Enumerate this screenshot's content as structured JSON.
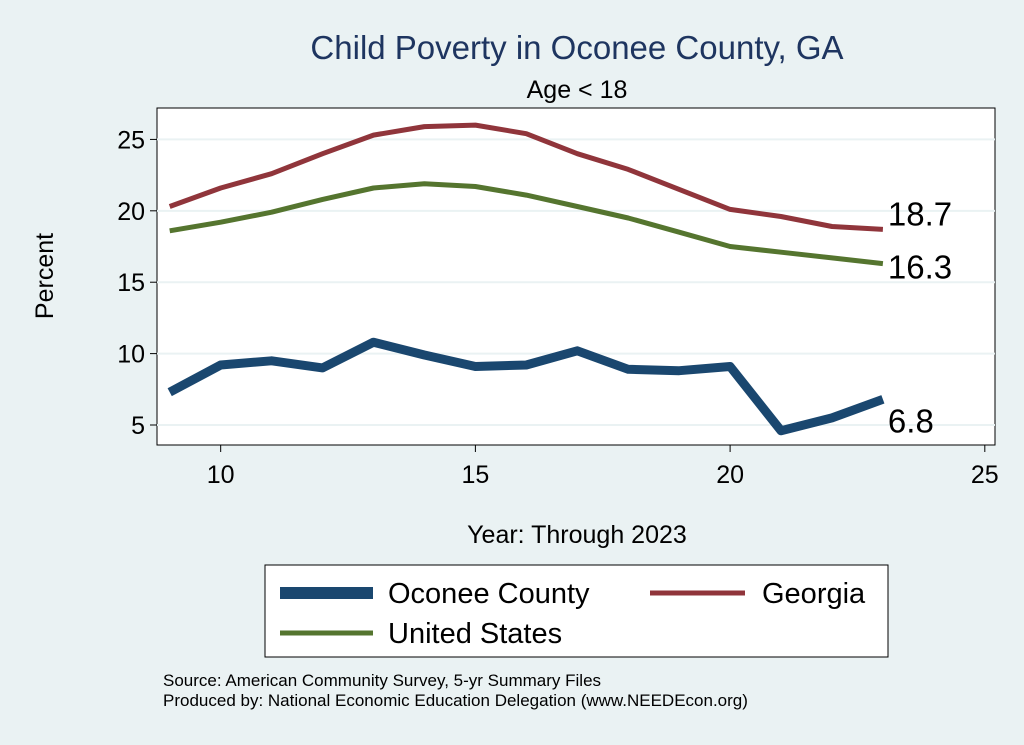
{
  "chart_data": {
    "type": "line",
    "title": "Child Poverty in Oconee County, GA",
    "subtitle": "Age < 18",
    "xlabel": "Year: Through 2023",
    "ylabel": "Percent",
    "xlim": [
      8.75,
      25.2
    ],
    "ylim": [
      3.6,
      27.2
    ],
    "xticks": [
      10,
      15,
      20,
      25
    ],
    "yticks": [
      5,
      10,
      15,
      20,
      25
    ],
    "grid": true,
    "legend_position": "bottom",
    "x": [
      9,
      10,
      11,
      12,
      13,
      14,
      15,
      16,
      17,
      18,
      19,
      20,
      21,
      22,
      23
    ],
    "series": [
      {
        "name": "Oconee County",
        "color": "#1a476f",
        "values": [
          7.3,
          9.2,
          9.5,
          9.0,
          10.8,
          9.9,
          9.1,
          9.2,
          10.2,
          8.9,
          8.8,
          9.1,
          4.6,
          5.5,
          6.8
        ],
        "end_label": "6.8"
      },
      {
        "name": "Georgia",
        "color": "#90353b",
        "values": [
          20.3,
          21.6,
          22.6,
          24.0,
          25.3,
          25.9,
          26.0,
          25.4,
          24.0,
          22.9,
          21.5,
          20.1,
          19.6,
          18.9,
          18.7
        ],
        "end_label": "18.7"
      },
      {
        "name": "United States",
        "color": "#55752f",
        "values": [
          18.6,
          19.2,
          19.9,
          20.8,
          21.6,
          21.9,
          21.7,
          21.1,
          20.3,
          19.5,
          18.5,
          17.5,
          17.1,
          16.7,
          16.3
        ],
        "end_label": "16.3"
      }
    ]
  },
  "footnotes": {
    "source": "Source: American Community Survey, 5-yr Summary Files",
    "producer": "Produced by: National Economic Education Delegation (www.NEEDEcon.org)"
  }
}
